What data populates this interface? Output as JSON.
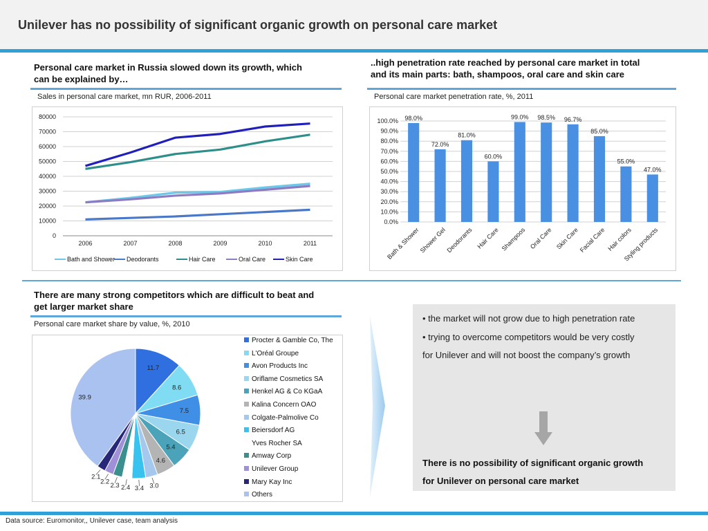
{
  "header": {
    "title": "Unilever has no possibility of significant organic growth on personal care market"
  },
  "left_top": {
    "heading_line1": "Personal care market in Russia slowed down its growth, which",
    "heading_line2": "can be explained by…",
    "subtitle": "Sales in personal care market, mn RUR, 2006-2011"
  },
  "right_top": {
    "heading_line1": "..high penetration rate reached by personal care market in total",
    "heading_line2": "and its main parts: bath, shampoos, oral care and skin care",
    "subtitle": "Personal care market penetration rate, %, 2011"
  },
  "left_bottom": {
    "heading_line1": "There are many strong competitors which are difficult to beat and",
    "heading_line2": "get larger market share",
    "subtitle": "Personal care market share by value, %, 2010"
  },
  "panel": {
    "bullet1": "• the market will not grow due to high penetration rate",
    "bullet2_line1": "• trying to overcome competitors would be very costly",
    "bullet2_line2": "for Unilever and will not boost the company’s growth",
    "conclusion_line1": "There is no possibility of significant organic growth",
    "conclusion_line2": "for Unilever on personal care market",
    "arrow_icon": "arrow-down-icon"
  },
  "footer": {
    "source": "Data source: Euromonitor,, Unilever case, team analysis"
  },
  "colors": {
    "accent": "#2fa0d8",
    "bar": "#4a90e2",
    "panel_bg": "#e6e6e6"
  },
  "chart_data": [
    {
      "type": "line",
      "x": [
        "2006",
        "2007",
        "2008",
        "2009",
        "2010",
        "2011"
      ],
      "ylim": [
        0,
        80000
      ],
      "yticks": [
        "0",
        "10000",
        "20000",
        "30000",
        "40000",
        "50000",
        "60000",
        "70000",
        "80000"
      ],
      "grid": true,
      "legend_position": "bottom",
      "series": [
        {
          "name": "Bath and Shower",
          "color": "#6cc8e8",
          "values": [
            22500,
            25500,
            29000,
            29500,
            32500,
            35000
          ]
        },
        {
          "name": "Deodorants",
          "color": "#4a78c8",
          "values": [
            11000,
            12000,
            13000,
            14500,
            16000,
            17500
          ]
        },
        {
          "name": "Hair Care",
          "color": "#2e8f8a",
          "values": [
            45000,
            49500,
            55000,
            58000,
            63500,
            68000
          ]
        },
        {
          "name": "Oral Care",
          "color": "#8e7cc3",
          "values": [
            22500,
            24500,
            27000,
            28500,
            31000,
            33500
          ]
        },
        {
          "name": "Skin Care",
          "color": "#2020b8",
          "values": [
            47000,
            56000,
            66000,
            68500,
            73500,
            75500
          ]
        }
      ]
    },
    {
      "type": "bar",
      "categories": [
        "Bath & Shower",
        "Shower Gel",
        "Deodorants",
        "Hair Care",
        "Shampoos",
        "Oral Care",
        "Skin Care",
        "Facial Care",
        "Hair colors",
        "Styling products"
      ],
      "values": [
        98.0,
        72.0,
        81.0,
        60.0,
        99.0,
        98.5,
        96.7,
        85.0,
        55.0,
        47.0
      ],
      "data_labels": [
        "98.0%",
        "72.0%",
        "81.0%",
        "60.0%",
        "99.0%",
        "98.5%",
        "96.7%",
        "85.0%",
        "55.0%",
        "47.0%"
      ],
      "ylim": [
        0,
        100
      ],
      "yticks": [
        "0.0%",
        "10.0%",
        "20.0%",
        "30.0%",
        "40.0%",
        "50.0%",
        "60.0%",
        "70.0%",
        "80.0%",
        "90.0%",
        "100.0%"
      ],
      "grid": true
    },
    {
      "type": "pie",
      "legend_position": "right",
      "slices": [
        {
          "name": "Procter & Gamble Co, The",
          "value": 11.7,
          "label": "11.7",
          "color": "#2f6fe0"
        },
        {
          "name": "L'Oréal Groupe",
          "value": 8.6,
          "label": "8.6",
          "color": "#80dcf2"
        },
        {
          "name": "Avon Products Inc",
          "value": 7.5,
          "label": "7.5",
          "color": "#3f8fe6"
        },
        {
          "name": "Oriflame Cosmetics SA",
          "value": 6.5,
          "label": "6.5",
          "color": "#9ad6ee"
        },
        {
          "name": "Henkel AG & Co KGaA",
          "value": 5.4,
          "label": "5.4",
          "color": "#4aa3b8"
        },
        {
          "name": "Kalina Concern OAO",
          "value": 4.6,
          "label": "4.6",
          "color": "#b4b4b4"
        },
        {
          "name": "Colgate-Palmolive Co",
          "value": 3.0,
          "label": "3.0",
          "color": "#a4c8ee"
        },
        {
          "name": "Beiersdorf AG",
          "value": 3.4,
          "label": "3.4",
          "color": "#38c2f0"
        },
        {
          "name": "Yves Rocher SA",
          "value": 2.4,
          "label": "2.4",
          "color": "#ffffff"
        },
        {
          "name": "Amway Corp",
          "value": 2.3,
          "label": "2.3",
          "color": "#3a8f8f"
        },
        {
          "name": "Unilever Group",
          "value": 2.2,
          "label": "2.2",
          "color": "#9f90d8"
        },
        {
          "name": "Mary Kay Inc",
          "value": 2.1,
          "label": "2.1",
          "color": "#28287a"
        },
        {
          "name": "Others",
          "value": 39.9,
          "label": "39.9",
          "color": "#a9c2ef"
        }
      ]
    }
  ]
}
